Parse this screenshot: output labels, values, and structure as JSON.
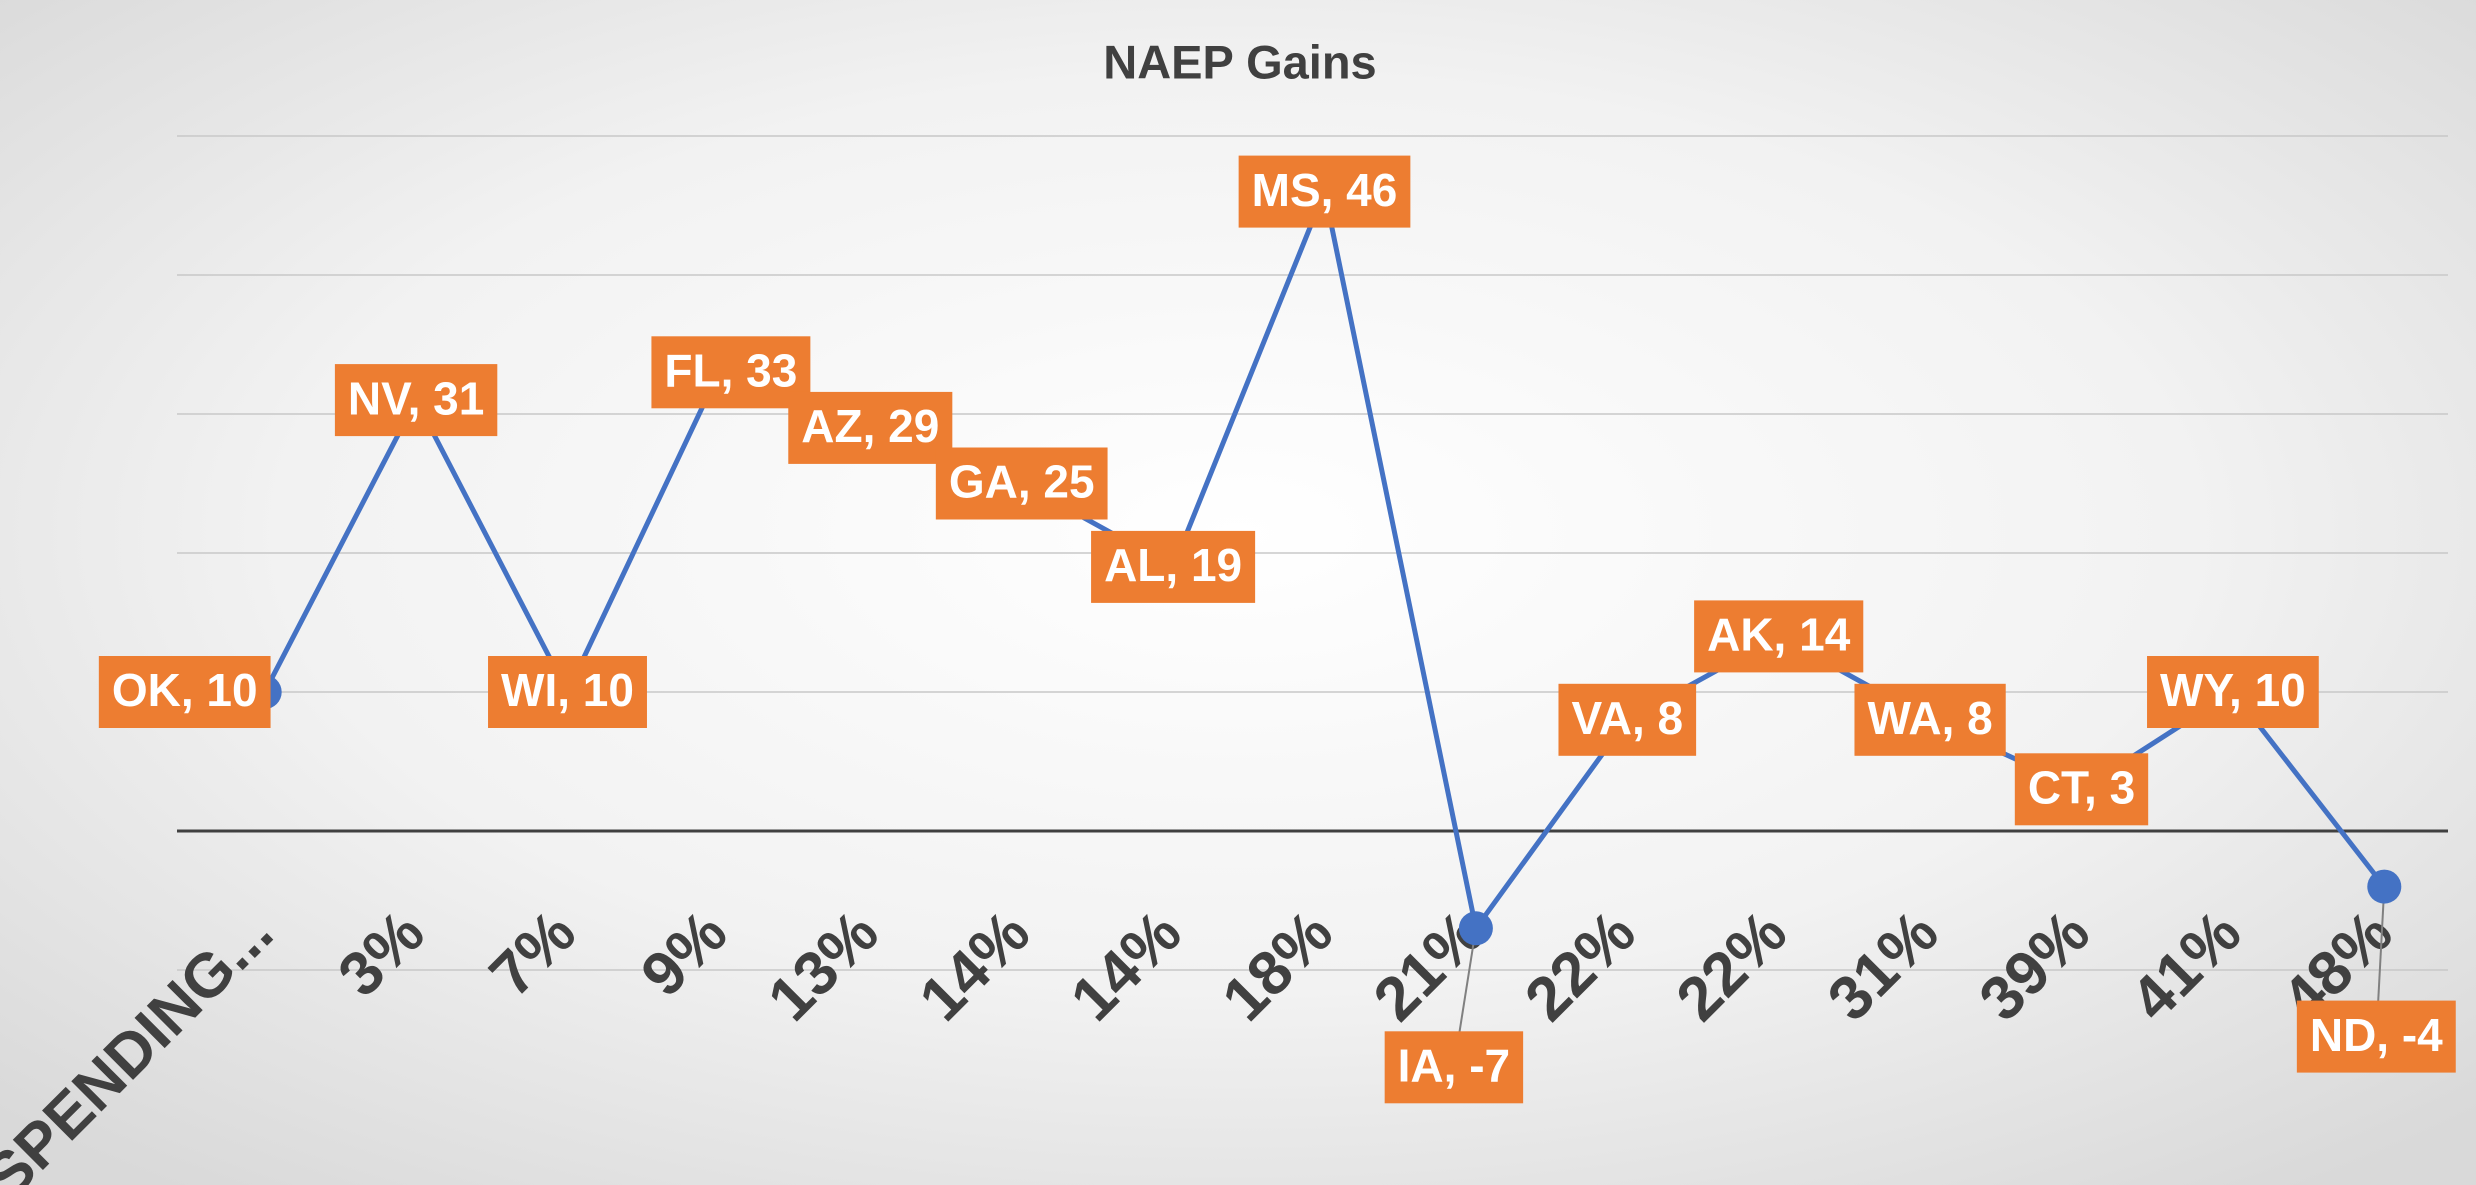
{
  "chart_data": {
    "type": "line",
    "title": "NAEP Gains",
    "categories": [
      "SPENDING...",
      "3%",
      "7%",
      "9%",
      "13%",
      "14%",
      "14%",
      "18%",
      "21%",
      "22%",
      "22%",
      "31%",
      "39%",
      "41%",
      "48%"
    ],
    "series": [
      {
        "color": "#4472c4",
        "values": [
          10,
          31,
          10,
          33,
          29,
          25,
          19,
          46,
          -7,
          8,
          14,
          8,
          3,
          10,
          -4
        ],
        "value_labels": [
          "OK, 10",
          "NV, 31",
          "WI, 10",
          "FL, 33",
          "AZ, 29",
          "GA, 25",
          "AL, 19",
          "MS, 46",
          "IA, -7",
          "VA, 8",
          "AK, 14",
          "WA, 8",
          "CT, 3",
          "WY, 10",
          "ND, -4"
        ]
      }
    ],
    "label_color": "#ed7d31",
    "ylim": [
      -10,
      50
    ],
    "yticks": [
      -10,
      0,
      10,
      20,
      30,
      40,
      50
    ],
    "grid": true
  }
}
